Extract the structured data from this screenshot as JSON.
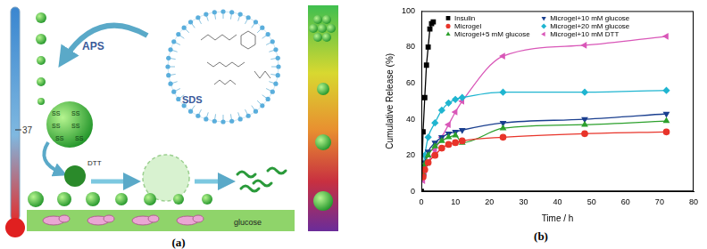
{
  "diagram": {
    "panel_label": "(a)",
    "temperature": "37",
    "initiator": "APS",
    "surfactant": "SDS",
    "crosslink": "SS",
    "reductant": "DTT",
    "substrate": "glucose"
  },
  "chart_panel_label": "(b)",
  "chart_data": {
    "type": "line",
    "x_label": "Time / h",
    "y_label": "Cumulative Release (%)",
    "xlim": [
      0,
      80
    ],
    "xticks": [
      0,
      10,
      20,
      30,
      40,
      50,
      60,
      70,
      80
    ],
    "ylim": [
      0,
      100
    ],
    "yticks": [
      0,
      20,
      40,
      60,
      80,
      100
    ],
    "grid": false,
    "legend": "top",
    "series": [
      {
        "name": "Insulin",
        "color": "#000000",
        "marker": "square",
        "line_style": "solid",
        "x": [
          0,
          0.5,
          1,
          1.5,
          2,
          2.5,
          3,
          3.5
        ],
        "values": [
          0,
          33,
          52,
          70,
          80,
          90,
          93,
          94
        ]
      },
      {
        "name": "Microgel",
        "color": "#e8342a",
        "marker": "circle",
        "line_style": "smooth",
        "x": [
          0.5,
          1,
          2,
          4,
          6,
          8,
          10,
          12,
          24,
          48,
          72
        ],
        "values": [
          8,
          12,
          16,
          20,
          24,
          26,
          27,
          28,
          30,
          32,
          33
        ]
      },
      {
        "name": "Microgel+5 mM glucose",
        "color": "#2ca02c",
        "marker": "triangle-up",
        "line_style": "smooth",
        "x": [
          0.5,
          1,
          2,
          4,
          6,
          8,
          10,
          12,
          24,
          48,
          72
        ],
        "values": [
          10,
          15,
          20,
          25,
          28,
          30,
          31,
          27,
          35,
          37,
          39
        ]
      },
      {
        "name": "Microgel+10 mM glucose",
        "color": "#1a3f8f",
        "marker": "triangle-down",
        "line_style": "smooth",
        "x": [
          0.5,
          1,
          2,
          4,
          6,
          8,
          10,
          12,
          24,
          48,
          72
        ],
        "values": [
          11,
          16,
          22,
          27,
          30,
          32,
          33,
          34,
          38,
          40,
          43
        ]
      },
      {
        "name": "Microgel+20 mM glucose",
        "color": "#1fb5d0",
        "marker": "diamond",
        "line_style": "smooth",
        "x": [
          0.5,
          1,
          2,
          4,
          6,
          8,
          10,
          12,
          24,
          48,
          72
        ],
        "values": [
          13,
          20,
          30,
          38,
          45,
          49,
          51,
          52,
          55,
          55,
          56
        ]
      },
      {
        "name": "Microgel+10 mM DTT",
        "color": "#d957b8",
        "marker": "triangle-left",
        "line_style": "smooth",
        "x": [
          0.5,
          1,
          2,
          4,
          6,
          8,
          10,
          12,
          24,
          48,
          72
        ],
        "values": [
          6,
          10,
          16,
          23,
          30,
          37,
          44,
          50,
          75,
          81,
          86
        ]
      }
    ]
  }
}
